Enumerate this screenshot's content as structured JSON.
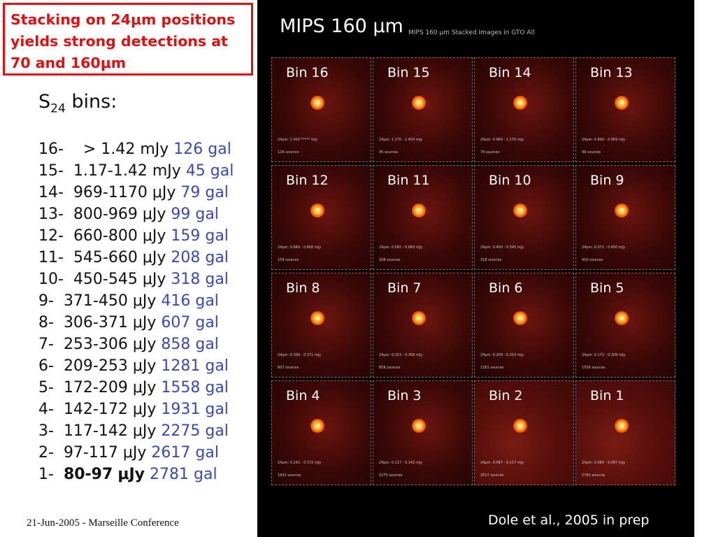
{
  "callout": {
    "line1": "Stacking on 24μm positions",
    "line2": "yields strong detections at",
    "line3": "70 and 160μm"
  },
  "s24": {
    "symbol": "S",
    "subscript": "24",
    "suffix": "bins:"
  },
  "bins": [
    {
      "num": "16-",
      "range": "  > 1.42",
      "unit": "mJy",
      "gal": "126 gal"
    },
    {
      "num": "15-",
      "range": "1.17-1.42",
      "unit": "mJy",
      "gal": "45 gal"
    },
    {
      "num": "14-",
      "range": "969-1170",
      "unit": "μJy",
      "gal": "79 gal"
    },
    {
      "num": "13-",
      "range": "800-969",
      "unit": "μJy",
      "gal": "99 gal"
    },
    {
      "num": "12-",
      "range": "660-800",
      "unit": "μJy",
      "gal": "159 gal"
    },
    {
      "num": "11-",
      "range": "545-660",
      "unit": "μJy",
      "gal": "208 gal"
    },
    {
      "num": "10-",
      "range": "450-545",
      "unit": "μJy",
      "gal": "318 gal"
    },
    {
      "num": "9-",
      "range": "371-450",
      "unit": "μJy",
      "gal": "416 gal"
    },
    {
      "num": "8-",
      "range": "306-371",
      "unit": "μJy",
      "gal": "607 gal"
    },
    {
      "num": "7-",
      "range": "253-306",
      "unit": "μJy",
      "gal": "858 gal"
    },
    {
      "num": "6-",
      "range": "209-253",
      "unit": "μJy",
      "gal": "1281 gal"
    },
    {
      "num": "5-",
      "range": "172-209",
      "unit": "μJy",
      "gal": "1558 gal"
    },
    {
      "num": "4-",
      "range": "142-172",
      "unit": "μJy",
      "gal": "1931 gal"
    },
    {
      "num": "3-",
      "range": "117-142",
      "unit": "μJy",
      "gal": "2275 gal"
    },
    {
      "num": "2-",
      "range": "97-117",
      "unit": "μJy",
      "gal": "2617 gal"
    },
    {
      "num": "1-",
      "range": "80-97",
      "unit": "μJy",
      "gal": "2781 gal",
      "bold": true
    }
  ],
  "footer": "21-Jun-2005 - Marseille Conference",
  "mips": {
    "title": "MIPS 160 μm",
    "subtitle": "MIPS 160 μm Stacked Images in GTO All"
  },
  "tiles": [
    {
      "label": "Bin 16",
      "cap1": "24μm: 1.420 ***** mJy",
      "cap2": "126 sources"
    },
    {
      "label": "Bin 15",
      "cap1": "24μm: 1.170 - 1.420 mJy",
      "cap2": "45 sources"
    },
    {
      "label": "Bin 14",
      "cap1": "24μm: 0.969 - 1.170 mJy",
      "cap2": "79 sources"
    },
    {
      "label": "Bin 13",
      "cap1": "24μm: 0.800 - 0.969 mJy",
      "cap2": "99 sources"
    },
    {
      "label": "Bin 12",
      "cap1": "24μm: 0.660 - 0.800 mJy",
      "cap2": "159 sources"
    },
    {
      "label": "Bin 11",
      "cap1": "24μm: 0.545 - 0.660 mJy",
      "cap2": "208 sources"
    },
    {
      "label": "Bin 10",
      "cap1": "24μm: 0.450 - 0.545 mJy",
      "cap2": "318 sources"
    },
    {
      "label": "Bin 9",
      "cap1": "24μm: 0.371 - 0.450 mJy",
      "cap2": "416 sources"
    },
    {
      "label": "Bin 8",
      "cap1": "24μm: 0.306 - 0.371 mJy",
      "cap2": "607 sources"
    },
    {
      "label": "Bin 7",
      "cap1": "24μm: 0.253 - 0.306 mJy",
      "cap2": "858 sources"
    },
    {
      "label": "Bin 6",
      "cap1": "24μm: 0.209 - 0.253 mJy",
      "cap2": "1281 sources"
    },
    {
      "label": "Bin 5",
      "cap1": "24μm: 0.172 - 0.209 mJy",
      "cap2": "1558 sources"
    },
    {
      "label": "Bin 4",
      "cap1": "24μm: 0.142 - 0.172 mJy",
      "cap2": "1931 sources"
    },
    {
      "label": "Bin 3",
      "cap1": "24μm: 0.117 - 0.142 mJy",
      "cap2": "2275 sources"
    },
    {
      "label": "Bin 2",
      "cap1": "24μm: 0.097 - 0.117 mJy",
      "cap2": "2617 sources"
    },
    {
      "label": "Bin 1",
      "cap1": "24μm: 0.080 - 0.097 mJy",
      "cap2": "2781 sources"
    }
  ],
  "credit": "Dole et al., 2005 in prep"
}
